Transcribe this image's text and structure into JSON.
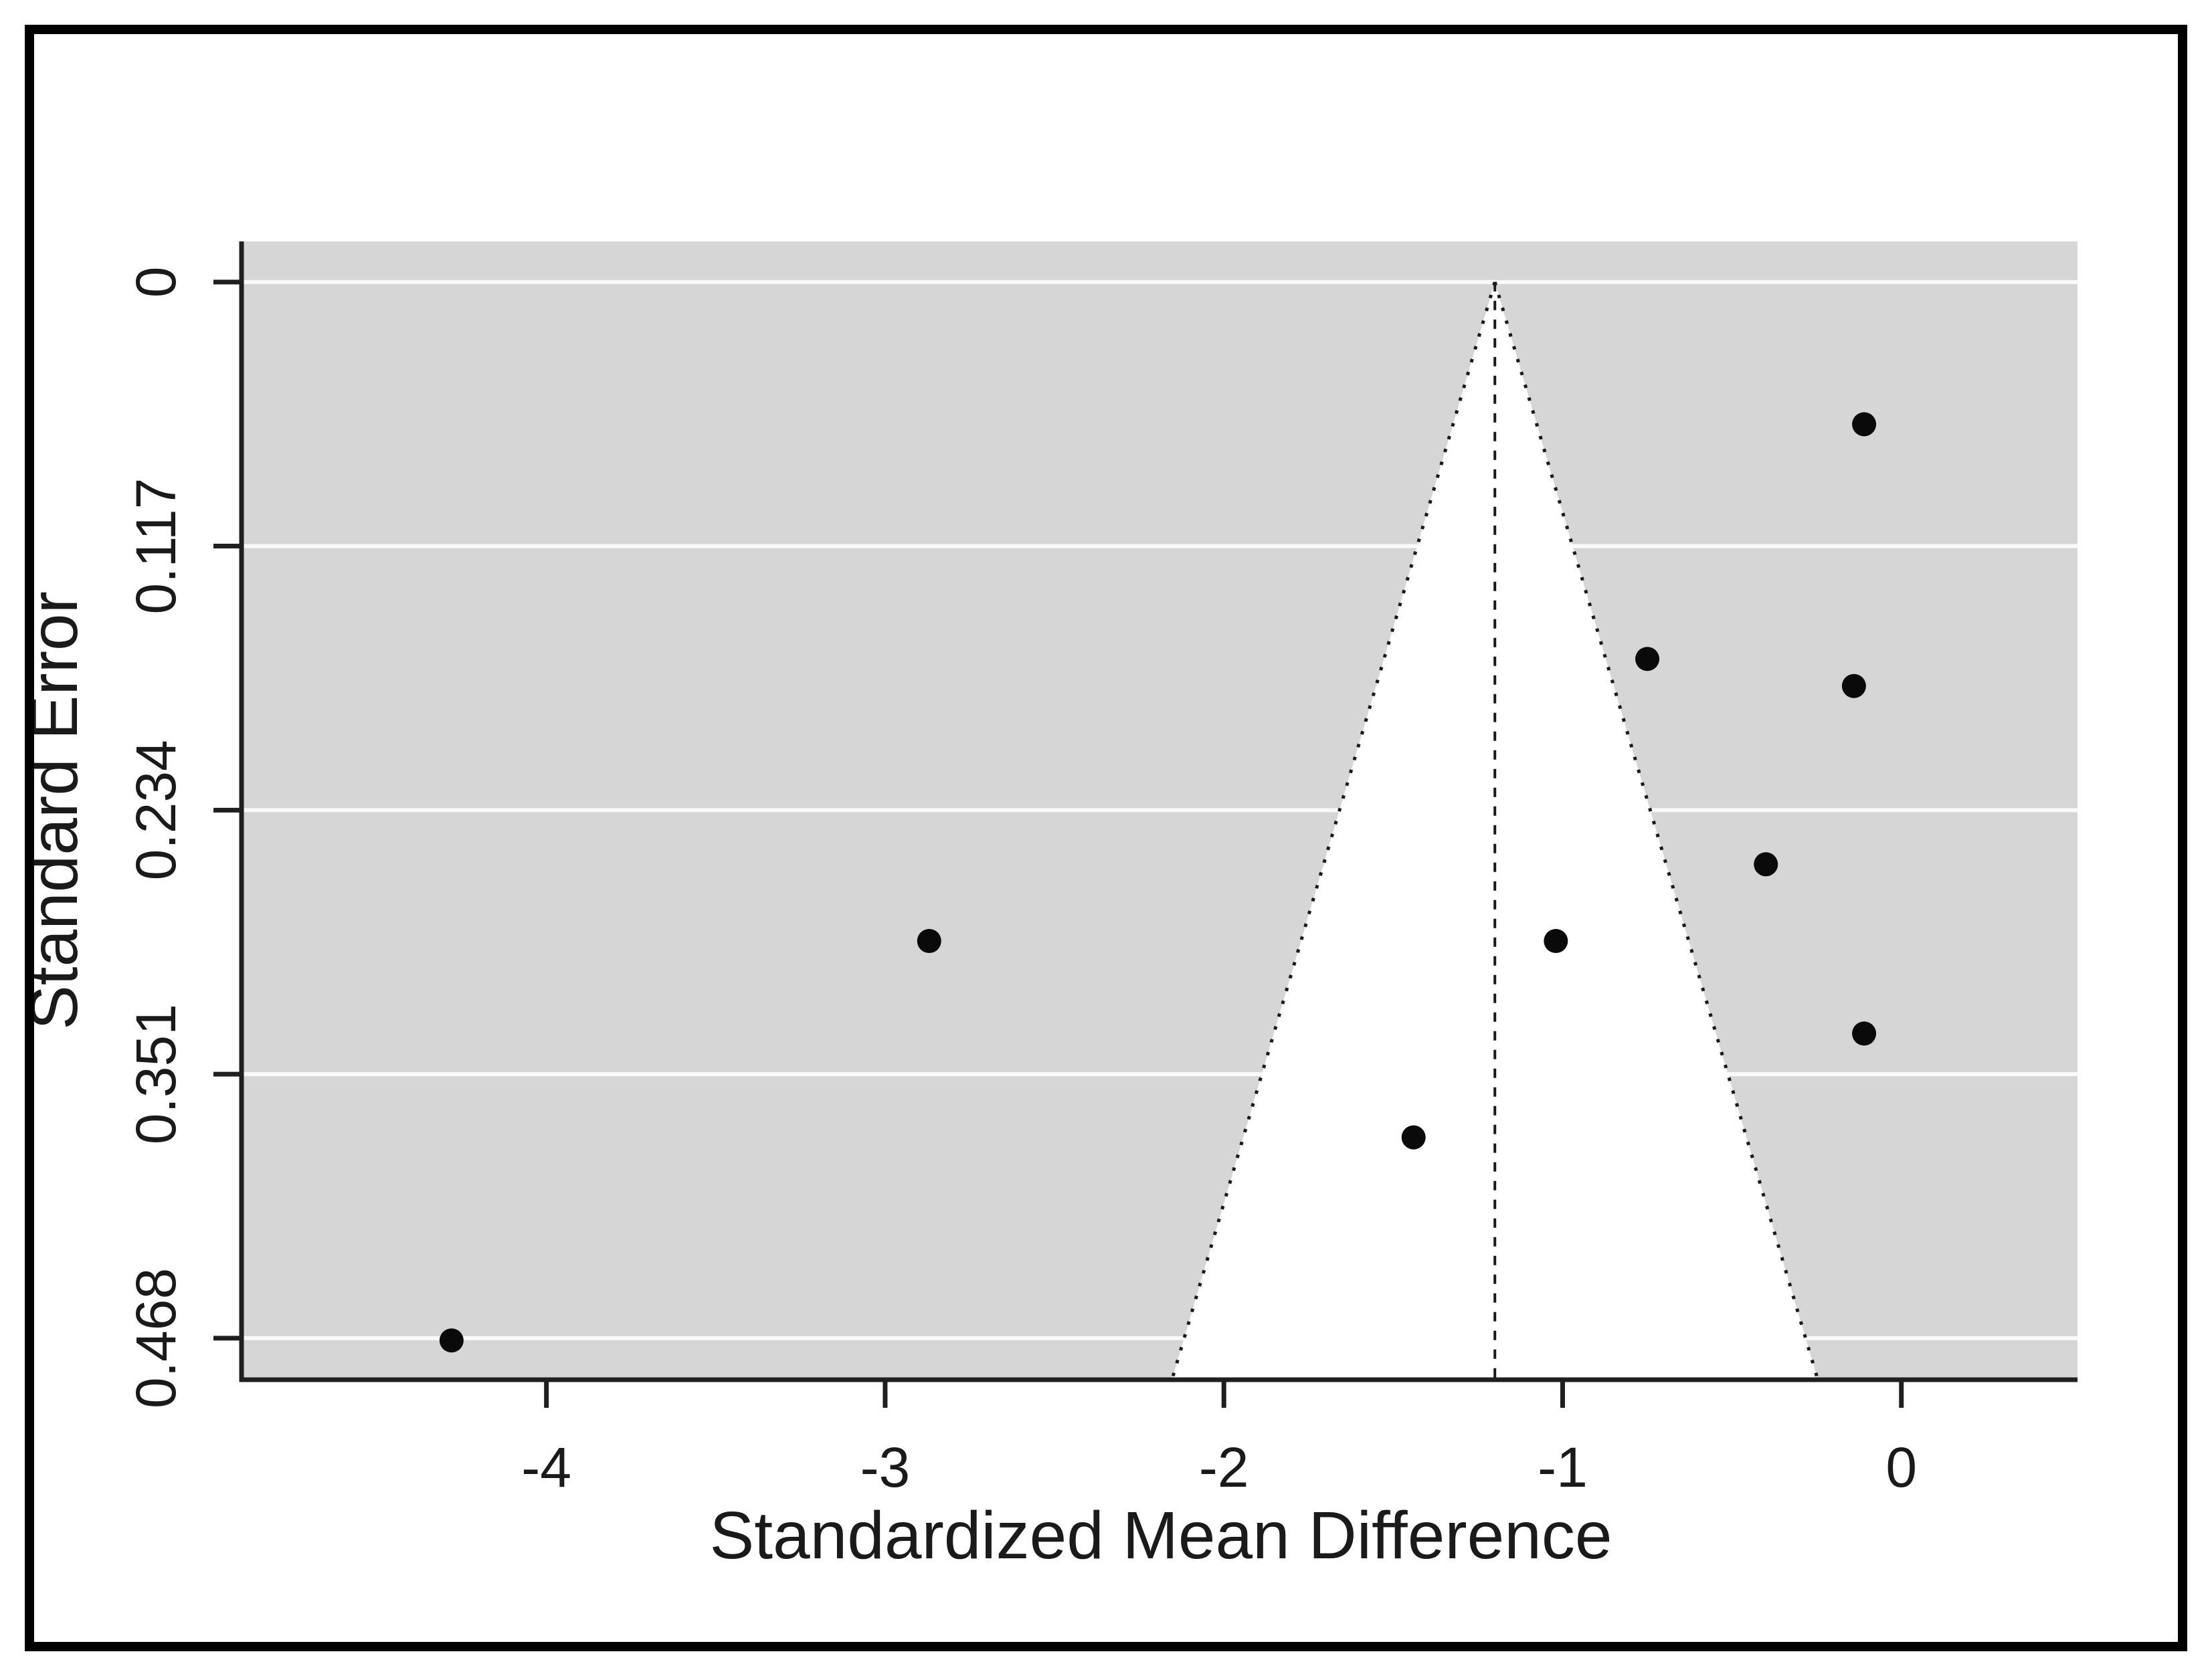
{
  "figure": {
    "kind": "meta-analysis funnel plot",
    "xlabel": "Standardized Mean Difference",
    "ylabel": "Standard Error"
  },
  "chart_data": {
    "type": "scatter",
    "subtype": "funnel-plot",
    "title": "",
    "xlabel": "Standardized Mean Difference",
    "ylabel": "Standard Error",
    "x_ticks": [
      {
        "label": "-4",
        "value": -4
      },
      {
        "label": "-3",
        "value": -3
      },
      {
        "label": "-2",
        "value": -2
      },
      {
        "label": "-1",
        "value": -1
      },
      {
        "label": "0",
        "value": 0
      }
    ],
    "y_ticks": [
      {
        "label": "0",
        "value": 0
      },
      {
        "label": "0.117",
        "value": 0.117
      },
      {
        "label": "0.234",
        "value": 0.234
      },
      {
        "label": "0.351",
        "value": 0.351
      },
      {
        "label": "0.468",
        "value": 0.468
      }
    ],
    "xlim": [
      -4.9,
      0.52
    ],
    "ylim_se": [
      -0.018,
      0.4864
    ],
    "y_axis_inverted": true,
    "grid": "horizontal-white-lines",
    "legend": "none",
    "funnel": {
      "center_estimate": -1.2,
      "apex_se": 0,
      "ci_multiplier": 1.96,
      "region_fill": "inside-white-outside-gray",
      "edge_line_style": "dotted",
      "center_line_style": "dashed-vertical"
    },
    "points": [
      {
        "smd": -0.11,
        "se": 0.063
      },
      {
        "smd": -0.75,
        "se": 0.167
      },
      {
        "smd": -0.14,
        "se": 0.179
      },
      {
        "smd": -0.4,
        "se": 0.258
      },
      {
        "smd": -1.02,
        "se": 0.292
      },
      {
        "smd": -2.87,
        "se": 0.292
      },
      {
        "smd": -0.11,
        "se": 0.333
      },
      {
        "smd": -1.44,
        "se": 0.379
      },
      {
        "smd": -4.28,
        "se": 0.469
      }
    ],
    "colors": {
      "background": "#ffffff",
      "panel_gray": "#d6d6d6",
      "gridline": "#fafafa",
      "point": "#0a0a0a",
      "funnel_fill": "#ffffff",
      "funnel_edge": "#1a1a1a",
      "axis": "#1f1f1f",
      "outer_border": "#000000"
    }
  }
}
